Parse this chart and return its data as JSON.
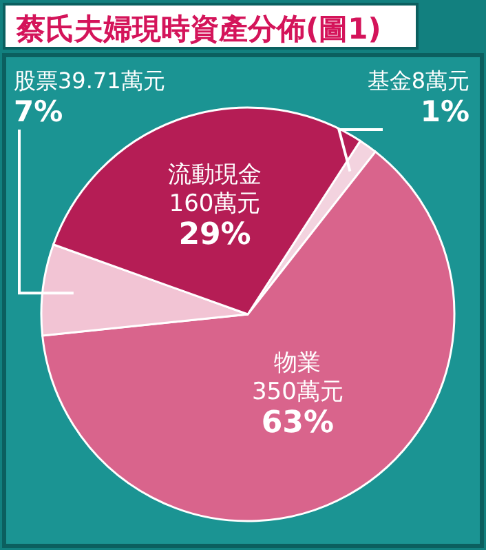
{
  "chart_data": {
    "type": "pie",
    "title": "蔡氏夫婦現時資產分佈(圖1)",
    "categories": [
      "基金",
      "物業",
      "股票",
      "流動現金"
    ],
    "values": [
      8,
      350,
      39.71,
      160
    ],
    "value_labels": [
      "8萬元 1%",
      "350萬元 63%",
      "39.71萬元 7%",
      "160萬元 29%"
    ],
    "colors": [
      "#f3d3df",
      "#d9648c",
      "#f2c4d4",
      "#b51d55"
    ]
  }
}
